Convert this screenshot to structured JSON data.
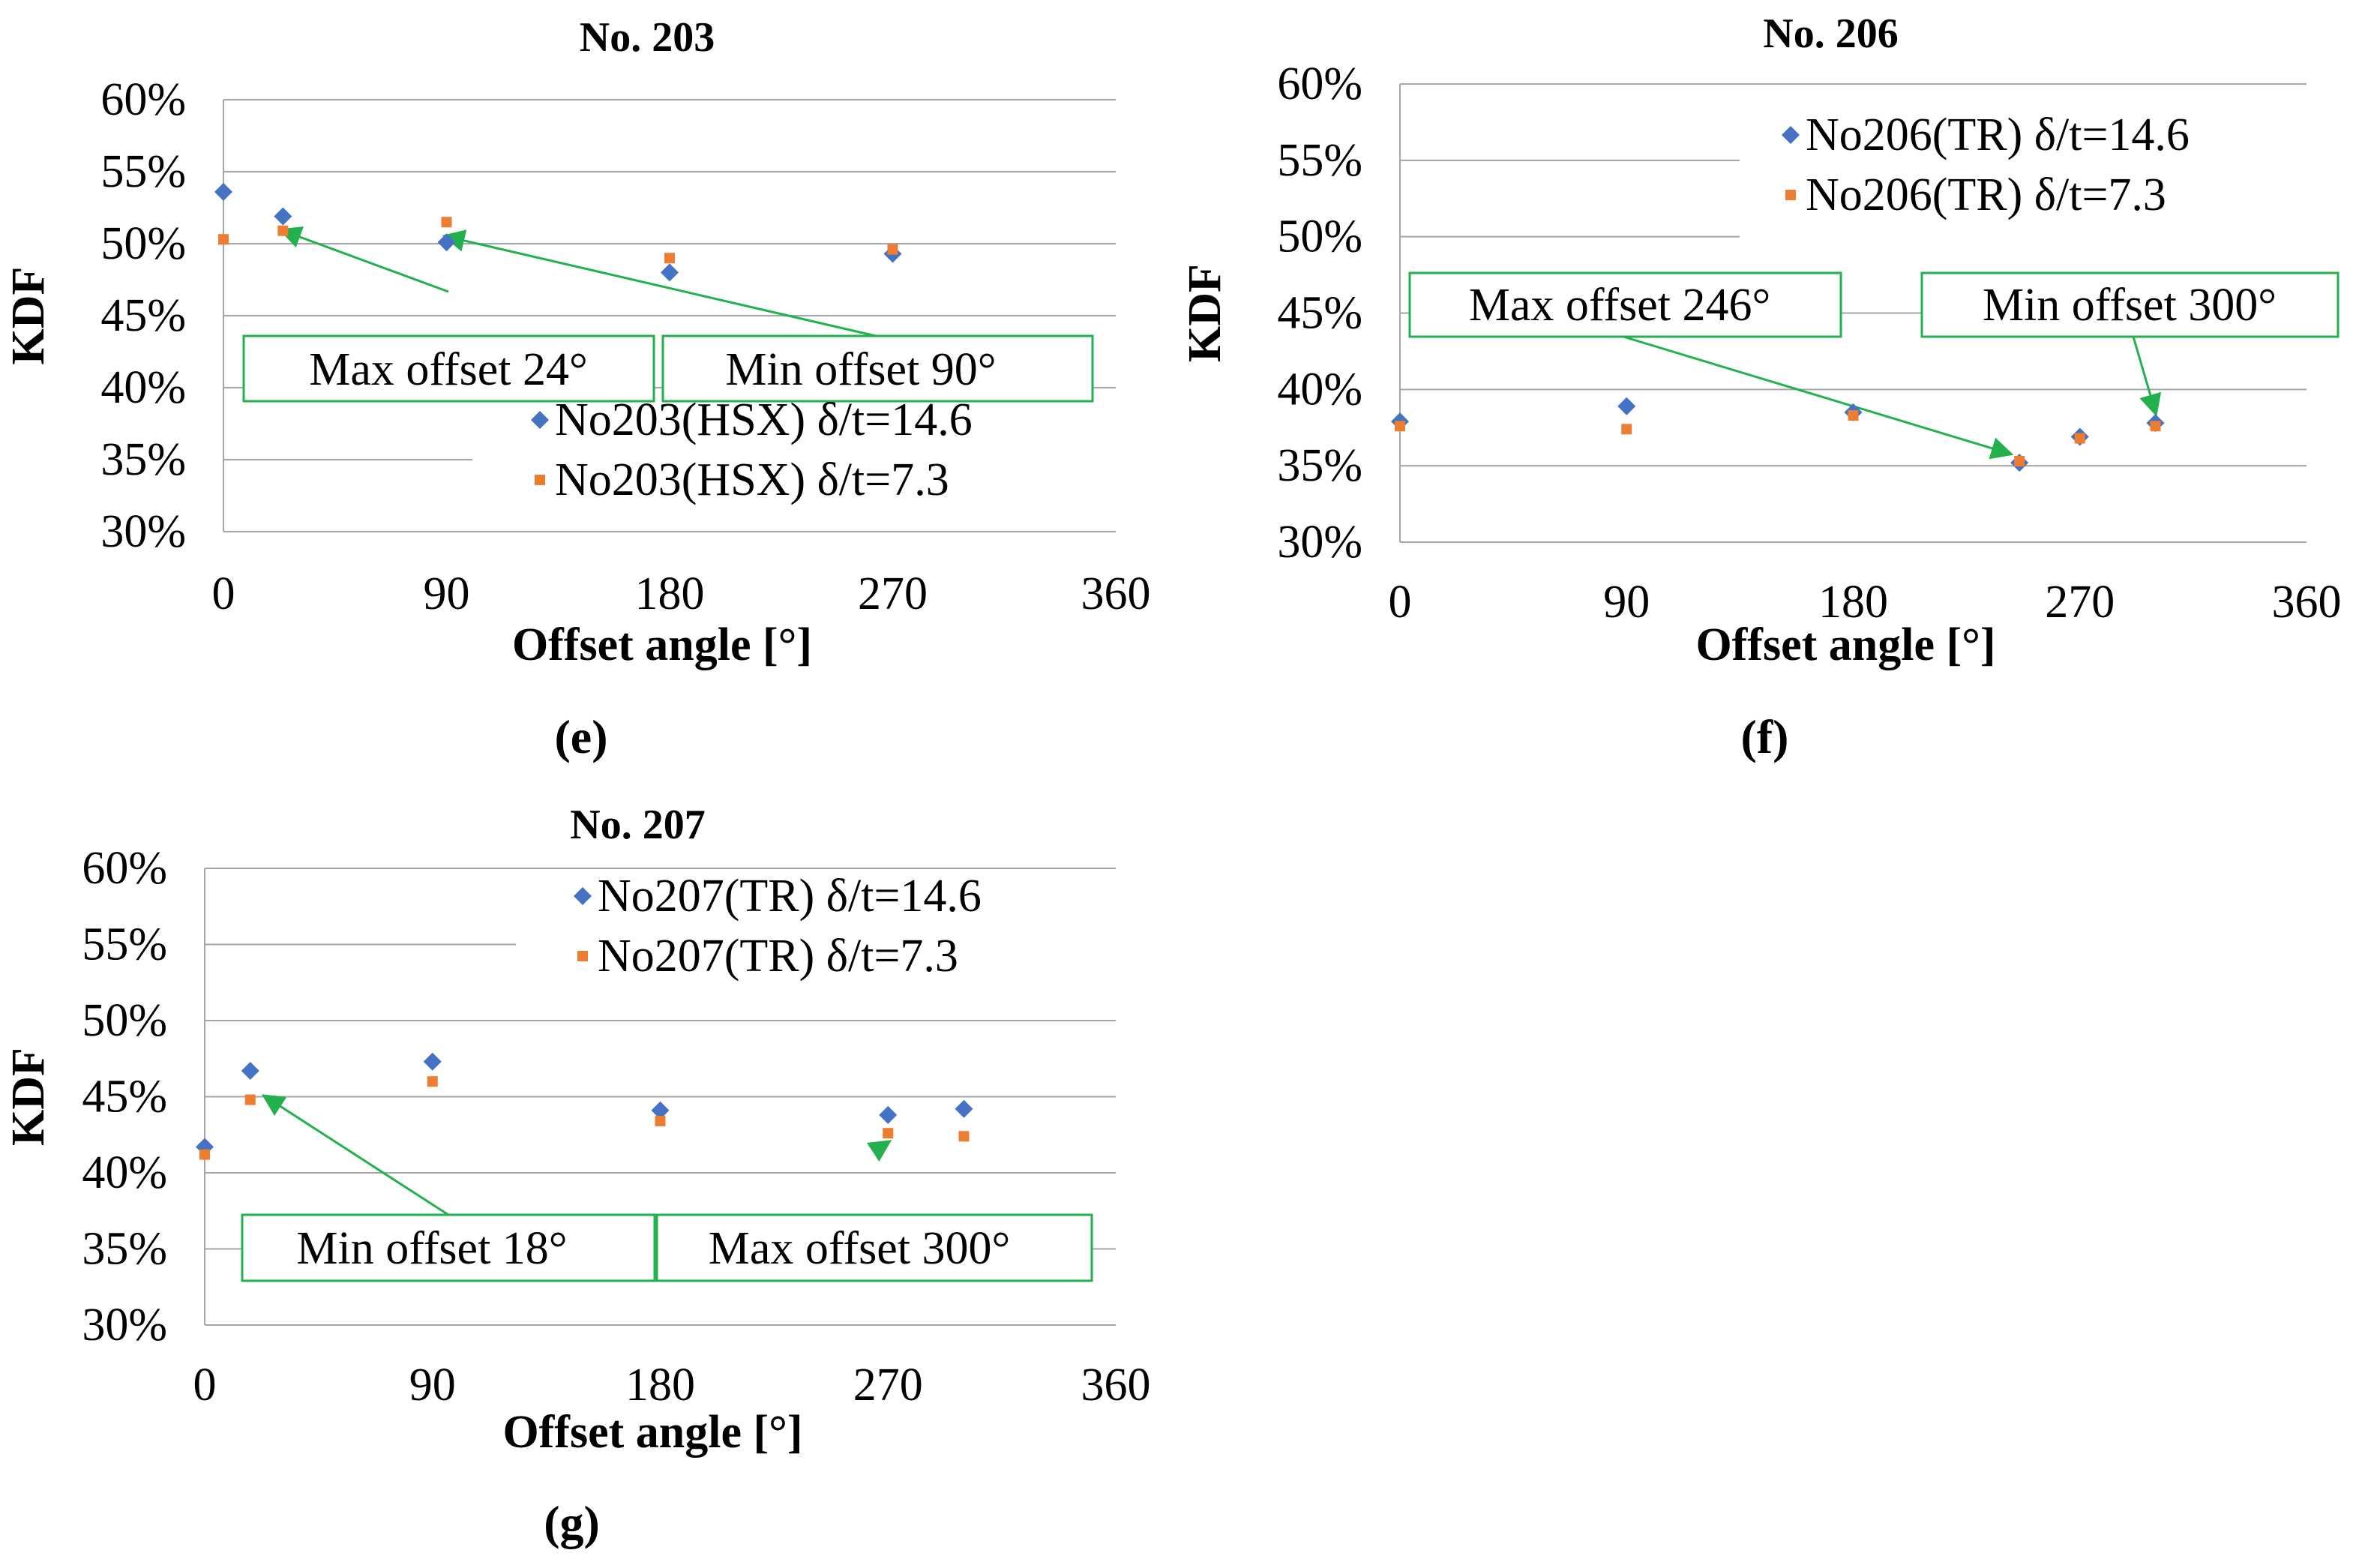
{
  "figure": {
    "captions": [
      "(e)",
      "(f)",
      "(g)"
    ]
  },
  "colors": {
    "series1": "#4472C4",
    "series2": "#ED7D31",
    "grid": "#A6A6A6",
    "annotation": "#22B14C"
  },
  "chart_data": [
    {
      "id": "e",
      "type": "scatter",
      "title": "No. 203",
      "xlabel": "Offset angle [°]",
      "ylabel": "KDF",
      "xlim": [
        0,
        360
      ],
      "ylim": [
        30,
        60
      ],
      "xticks": [
        0,
        90,
        180,
        270,
        360
      ],
      "xtick_labels": [
        "0",
        "90",
        "180",
        "270",
        "360"
      ],
      "yticks": [
        30,
        35,
        40,
        45,
        50,
        55,
        60
      ],
      "ytick_labels": [
        "30%",
        "35%",
        "40%",
        "45%",
        "50%",
        "55%",
        "60%"
      ],
      "legend_position": "bottom-right",
      "series": [
        {
          "name": "No203(HSX) δ/t=14.6",
          "marker": "diamond",
          "x": [
            0,
            24,
            90,
            180,
            270
          ],
          "y": [
            53.6,
            51.9,
            50.1,
            48.0,
            49.3
          ]
        },
        {
          "name": "No203(HSX) δ/t=7.3",
          "marker": "square",
          "x": [
            0,
            24,
            90,
            180,
            270
          ],
          "y": [
            50.3,
            50.9,
            51.5,
            49.0,
            49.6
          ]
        }
      ],
      "annotations": [
        {
          "text": "Max offset 24°",
          "target_x": 24,
          "target_y": 50.9
        },
        {
          "text": "Min offset 90°",
          "target_x": 90,
          "target_y": 50.5
        }
      ],
      "caption": "(e)"
    },
    {
      "id": "f",
      "type": "scatter",
      "title": "No. 206",
      "xlabel": "Offset angle [°]",
      "ylabel": "KDF",
      "xlim": [
        0,
        360
      ],
      "ylim": [
        30,
        60
      ],
      "xticks": [
        0,
        90,
        180,
        270,
        360
      ],
      "xtick_labels": [
        "0",
        "90",
        "180",
        "270",
        "360"
      ],
      "yticks": [
        30,
        35,
        40,
        45,
        50,
        55,
        60
      ],
      "ytick_labels": [
        "30%",
        "35%",
        "40%",
        "45%",
        "50%",
        "55%",
        "60%"
      ],
      "legend_position": "top-right",
      "series": [
        {
          "name": "No206(TR) δ/t=14.6",
          "marker": "diamond",
          "x": [
            0,
            90,
            180,
            246,
            270,
            300
          ],
          "y": [
            37.9,
            38.9,
            38.5,
            35.2,
            36.9,
            37.8
          ]
        },
        {
          "name": "No206(TR) δ/t=7.3",
          "marker": "square",
          "x": [
            0,
            90,
            180,
            246,
            270,
            300
          ],
          "y": [
            37.6,
            37.4,
            38.3,
            35.3,
            36.8,
            37.6
          ]
        }
      ],
      "annotations": [
        {
          "text": "Max offset 246°",
          "target_x": 242,
          "target_y": 35.8
        },
        {
          "text": "Min offset 300°",
          "target_x": 300,
          "target_y": 38.5
        }
      ],
      "caption": "(f)"
    },
    {
      "id": "g",
      "type": "scatter",
      "title": "No. 207",
      "xlabel": "Offset angle [°]",
      "ylabel": "KDF",
      "xlim": [
        0,
        360
      ],
      "ylim": [
        30,
        60
      ],
      "xticks": [
        0,
        90,
        180,
        270,
        360
      ],
      "xtick_labels": [
        "0",
        "90",
        "180",
        "270",
        "360"
      ],
      "yticks": [
        30,
        35,
        40,
        45,
        50,
        55,
        60
      ],
      "ytick_labels": [
        "30%",
        "35%",
        "40%",
        "45%",
        "50%",
        "55%",
        "60%"
      ],
      "legend_position": "top-right",
      "series": [
        {
          "name": "No207(TR) δ/t=14.6",
          "marker": "diamond",
          "x": [
            0,
            18,
            90,
            180,
            270,
            300
          ],
          "y": [
            41.7,
            46.7,
            47.3,
            44.1,
            43.8,
            44.2
          ]
        },
        {
          "name": "No207(TR) δ/t=7.3",
          "marker": "square",
          "x": [
            0,
            18,
            90,
            180,
            270,
            300
          ],
          "y": [
            41.2,
            44.8,
            46.0,
            43.4,
            42.6,
            42.4
          ]
        }
      ],
      "annotations": [
        {
          "text": "Min offset 18°",
          "target_x": 24,
          "target_y": 45.0
        },
        {
          "text": "Max offset 300°",
          "target_x": 270,
          "target_y": 42.0
        }
      ],
      "caption": "(g)"
    }
  ]
}
